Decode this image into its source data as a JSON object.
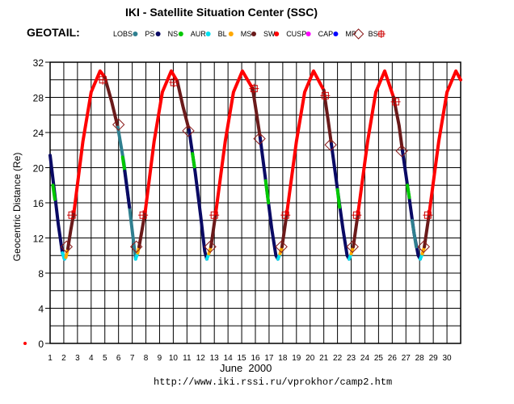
{
  "chart_data": {
    "type": "line",
    "title": "IKI - Satellite Situation Center (SSC)",
    "satellite": "GEOTAIL:",
    "ylabel": "Geocentric Distance (Re)",
    "xlabel": "June  2000",
    "url": "http://www.iki.rssi.ru/vprokhor/camp2.htm",
    "ylim": [
      0,
      32
    ],
    "xlim": [
      1,
      31
    ],
    "yticks": [
      0,
      4,
      8,
      12,
      16,
      20,
      24,
      28,
      32
    ],
    "xticks": [
      "1",
      "2",
      "3",
      "4",
      "5",
      "6",
      "7",
      "8",
      "9",
      "10",
      "11",
      "12",
      "13",
      "14",
      "15",
      "16",
      "17",
      "18",
      "19",
      "20",
      "21",
      "22",
      "23",
      "24",
      "25",
      "26",
      "27",
      "28",
      "29",
      "30"
    ],
    "grid": true,
    "legend": [
      {
        "name": "LOBS",
        "color": "#2f7f8f",
        "marker": "dot"
      },
      {
        "name": "PS",
        "color": "#0a0a64",
        "marker": "dot"
      },
      {
        "name": "NS",
        "color": "#00c800",
        "marker": "dot"
      },
      {
        "name": "AUR",
        "color": "#00e0f0",
        "marker": "dot"
      },
      {
        "name": "BL",
        "color": "#ffa800",
        "marker": "dot"
      },
      {
        "name": "MS",
        "color": "#6a1a1a",
        "marker": "dot"
      },
      {
        "name": "SW",
        "color": "#ff0000",
        "marker": "dot"
      },
      {
        "name": "CUSP",
        "color": "#ff00ff",
        "marker": "dot"
      },
      {
        "name": "CAP",
        "color": "#0000ff",
        "marker": "dot"
      },
      {
        "name": "MP",
        "color": "#8a1a1a",
        "marker": "diamond"
      },
      {
        "name": "BS",
        "color": "#cc0000",
        "marker": "square-cross"
      }
    ],
    "orbit": {
      "period_days": 5.2,
      "first_perigee_day": 2.05,
      "perigee": 9.6,
      "apogee": 31.0
    },
    "series": [
      {
        "region": "PS",
        "color": "#0a0a64",
        "points": [
          [
            1.0,
            21.4
          ],
          [
            1.3,
            17.5
          ],
          [
            1.6,
            13.5
          ],
          [
            1.9,
            10.3
          ],
          [
            2.05,
            9.6
          ]
        ]
      },
      {
        "region": "NS",
        "color": "#00c800",
        "points": [
          [
            1.2,
            18.0
          ],
          [
            1.35,
            16.4
          ]
        ]
      },
      {
        "region": "AUR",
        "color": "#00e0f0",
        "points": [
          [
            1.9,
            10.3
          ],
          [
            2.05,
            9.6
          ],
          [
            2.15,
            9.8
          ]
        ]
      },
      {
        "region": "BL",
        "color": "#ffa800",
        "points": [
          [
            2.15,
            9.8
          ],
          [
            2.3,
            10.8
          ]
        ]
      },
      {
        "region": "MS",
        "color": "#6a1a1a",
        "points": [
          [
            2.3,
            10.8
          ],
          [
            2.5,
            12.8
          ],
          [
            2.75,
            15.0
          ]
        ]
      },
      {
        "region": "SW",
        "color": "#ff0000",
        "points": [
          [
            2.75,
            15.0
          ],
          [
            3.4,
            23.0
          ],
          [
            4.0,
            28.6
          ],
          [
            4.65,
            31.0
          ],
          [
            5.0,
            30.3
          ]
        ]
      },
      {
        "region": "MS",
        "color": "#6a1a1a",
        "points": [
          [
            5.0,
            30.3
          ],
          [
            5.5,
            27.5
          ],
          [
            5.95,
            24.6
          ]
        ]
      },
      {
        "region": "LOBS",
        "color": "#2f7f8f",
        "points": [
          [
            5.95,
            24.6
          ],
          [
            6.4,
            20.5
          ],
          [
            6.8,
            15.5
          ],
          [
            7.1,
            11.5
          ],
          [
            7.25,
            9.6
          ]
        ]
      },
      {
        "region": "NS",
        "color": "#00c800",
        "points": [
          [
            6.3,
            21.2
          ],
          [
            6.45,
            19.6
          ]
        ]
      },
      {
        "region": "PS",
        "color": "#0a0a64",
        "points": [
          [
            6.45,
            19.6
          ],
          [
            6.8,
            15.5
          ]
        ]
      },
      {
        "region": "AUR",
        "color": "#00e0f0",
        "points": [
          [
            7.25,
            9.6
          ],
          [
            7.4,
            10.3
          ]
        ]
      },
      {
        "region": "BL",
        "color": "#ffa800",
        "points": [
          [
            7.4,
            10.3
          ],
          [
            7.5,
            11.0
          ]
        ]
      },
      {
        "region": "MS",
        "color": "#6a1a1a",
        "points": [
          [
            7.5,
            11.0
          ],
          [
            7.95,
            15.0
          ]
        ]
      },
      {
        "region": "SW",
        "color": "#ff0000",
        "points": [
          [
            7.95,
            15.0
          ],
          [
            8.6,
            23.0
          ],
          [
            9.2,
            28.6
          ],
          [
            9.85,
            31.0
          ],
          [
            10.3,
            29.8
          ]
        ]
      },
      {
        "region": "MS",
        "color": "#6a1a1a",
        "points": [
          [
            10.3,
            29.8
          ],
          [
            10.7,
            27.0
          ],
          [
            11.15,
            24.3
          ]
        ]
      },
      {
        "region": "PS",
        "color": "#0a0a64",
        "points": [
          [
            11.15,
            24.3
          ],
          [
            11.6,
            19.5
          ],
          [
            12.0,
            14.5
          ],
          [
            12.3,
            10.5
          ],
          [
            12.45,
            9.6
          ]
        ]
      },
      {
        "region": "NS",
        "color": "#00c800",
        "points": [
          [
            11.4,
            21.6
          ],
          [
            11.55,
            20.1
          ]
        ]
      },
      {
        "region": "AUR",
        "color": "#00e0f0",
        "points": [
          [
            12.45,
            9.6
          ],
          [
            12.6,
            10.2
          ]
        ]
      },
      {
        "region": "BL",
        "color": "#ffa800",
        "points": [
          [
            12.6,
            10.2
          ],
          [
            12.75,
            11.0
          ]
        ]
      },
      {
        "region": "MS",
        "color": "#6a1a1a",
        "points": [
          [
            12.75,
            11.0
          ],
          [
            13.1,
            14.8
          ]
        ]
      },
      {
        "region": "SW",
        "color": "#ff0000",
        "points": [
          [
            13.1,
            14.8
          ],
          [
            13.8,
            23.0
          ],
          [
            14.4,
            28.6
          ],
          [
            15.05,
            31.0
          ],
          [
            15.8,
            29.0
          ]
        ]
      },
      {
        "region": "MS",
        "color": "#6a1a1a",
        "points": [
          [
            15.8,
            29.0
          ],
          [
            16.1,
            26.0
          ],
          [
            16.35,
            23.4
          ]
        ]
      },
      {
        "region": "PS",
        "color": "#0a0a64",
        "points": [
          [
            16.35,
            23.4
          ],
          [
            16.8,
            18.0
          ],
          [
            17.2,
            13.0
          ],
          [
            17.5,
            10.0
          ],
          [
            17.65,
            9.6
          ]
        ]
      },
      {
        "region": "NS",
        "color": "#00c800",
        "points": [
          [
            16.75,
            18.5
          ],
          [
            16.95,
            16.0
          ]
        ]
      },
      {
        "region": "AUR",
        "color": "#00e0f0",
        "points": [
          [
            17.65,
            9.6
          ],
          [
            17.8,
            10.2
          ]
        ]
      },
      {
        "region": "BL",
        "color": "#ffa800",
        "points": [
          [
            17.8,
            10.2
          ],
          [
            17.95,
            11.0
          ]
        ]
      },
      {
        "region": "MS",
        "color": "#6a1a1a",
        "points": [
          [
            17.95,
            11.0
          ],
          [
            18.3,
            14.8
          ]
        ]
      },
      {
        "region": "SW",
        "color": "#ff0000",
        "points": [
          [
            18.3,
            14.8
          ],
          [
            19.0,
            23.0
          ],
          [
            19.6,
            28.6
          ],
          [
            20.25,
            31.0
          ],
          [
            21.0,
            28.8
          ]
        ]
      },
      {
        "region": "MS",
        "color": "#6a1a1a",
        "points": [
          [
            21.0,
            28.8
          ],
          [
            21.3,
            25.6
          ],
          [
            21.55,
            22.7
          ]
        ]
      },
      {
        "region": "PS",
        "color": "#0a0a64",
        "points": [
          [
            21.55,
            22.7
          ],
          [
            22.0,
            17.5
          ],
          [
            22.4,
            13.0
          ],
          [
            22.7,
            10.0
          ],
          [
            22.85,
            9.6
          ]
        ]
      },
      {
        "region": "NS",
        "color": "#00c800",
        "points": [
          [
            22.0,
            17.5
          ],
          [
            22.15,
            15.5
          ]
        ]
      },
      {
        "region": "AUR",
        "color": "#00e0f0",
        "points": [
          [
            22.85,
            9.6
          ],
          [
            23.0,
            10.2
          ]
        ]
      },
      {
        "region": "BL",
        "color": "#ffa800",
        "points": [
          [
            23.0,
            10.2
          ],
          [
            23.15,
            11.0
          ]
        ]
      },
      {
        "region": "MS",
        "color": "#6a1a1a",
        "points": [
          [
            23.15,
            11.0
          ],
          [
            23.5,
            14.8
          ]
        ]
      },
      {
        "region": "SW",
        "color": "#ff0000",
        "points": [
          [
            23.5,
            14.8
          ],
          [
            24.2,
            23.0
          ],
          [
            24.8,
            28.6
          ],
          [
            25.45,
            31.0
          ],
          [
            26.1,
            28.0
          ]
        ]
      },
      {
        "region": "MS",
        "color": "#6a1a1a",
        "points": [
          [
            26.1,
            28.0
          ],
          [
            26.5,
            24.8
          ],
          [
            26.75,
            21.9
          ]
        ]
      },
      {
        "region": "PS",
        "color": "#0a0a64",
        "points": [
          [
            26.75,
            21.9
          ],
          [
            27.2,
            17.0
          ],
          [
            27.6,
            12.5
          ],
          [
            27.9,
            10.0
          ],
          [
            28.05,
            9.6
          ]
        ]
      },
      {
        "region": "NS",
        "color": "#00c800",
        "points": [
          [
            27.1,
            18.0
          ],
          [
            27.25,
            16.6
          ]
        ]
      },
      {
        "region": "LOBS",
        "color": "#2f7f8f",
        "points": [
          [
            27.45,
            14.0
          ],
          [
            27.75,
            11.0
          ]
        ]
      },
      {
        "region": "AUR",
        "color": "#00e0f0",
        "points": [
          [
            28.05,
            9.6
          ],
          [
            28.2,
            10.2
          ]
        ]
      },
      {
        "region": "BL",
        "color": "#ffa800",
        "points": [
          [
            28.2,
            10.2
          ],
          [
            28.35,
            11.0
          ]
        ]
      },
      {
        "region": "MS",
        "color": "#6a1a1a",
        "points": [
          [
            28.35,
            11.0
          ],
          [
            28.7,
            14.8
          ]
        ]
      },
      {
        "region": "SW",
        "color": "#ff0000",
        "points": [
          [
            28.7,
            14.8
          ],
          [
            29.4,
            23.0
          ],
          [
            30.0,
            28.6
          ],
          [
            30.65,
            31.0
          ],
          [
            31.0,
            30.0
          ]
        ]
      }
    ],
    "mp_crossings": [
      [
        2.2,
        11.0
      ],
      [
        6.0,
        24.9
      ],
      [
        7.3,
        11.0
      ],
      [
        11.1,
        24.2
      ],
      [
        12.7,
        11.0
      ],
      [
        16.3,
        23.3
      ],
      [
        17.9,
        11.0
      ],
      [
        21.5,
        22.6
      ],
      [
        23.1,
        11.0
      ],
      [
        26.7,
        21.9
      ],
      [
        28.3,
        11.0
      ]
    ],
    "bs_crossings": [
      [
        2.6,
        14.6
      ],
      [
        4.85,
        30.0
      ],
      [
        7.8,
        14.6
      ],
      [
        10.05,
        29.7
      ],
      [
        13.0,
        14.6
      ],
      [
        15.9,
        29.0
      ],
      [
        18.2,
        14.6
      ],
      [
        21.1,
        28.2
      ],
      [
        23.4,
        14.6
      ],
      [
        26.25,
        27.5
      ],
      [
        28.6,
        14.6
      ]
    ],
    "marker_at_origin": {
      "x": 0.8,
      "y": -0.3,
      "color": "#ff0000"
    }
  }
}
